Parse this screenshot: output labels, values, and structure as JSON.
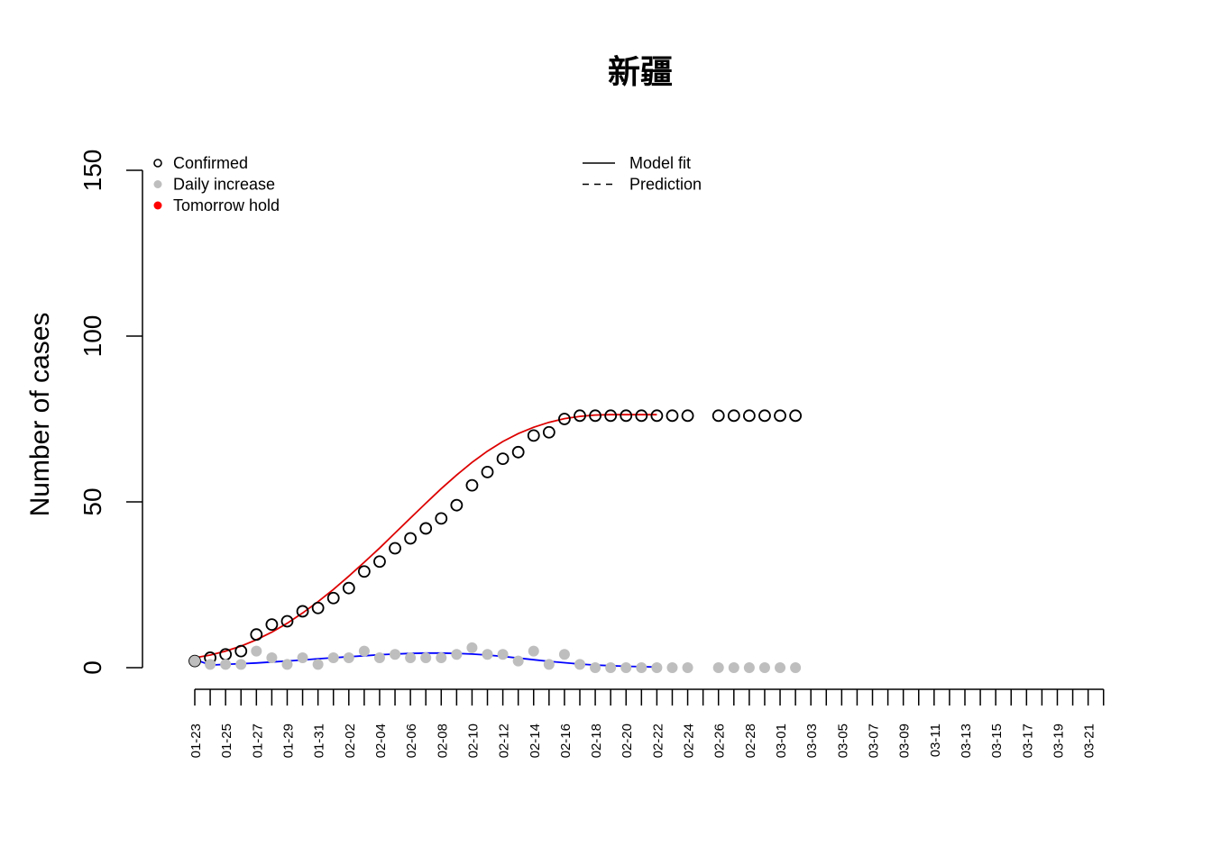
{
  "chart_data": {
    "type": "scatter",
    "title": "新疆",
    "ylabel": "Number of cases",
    "xlabel": "",
    "ylim": [
      0,
      150
    ],
    "yticks": [
      0,
      50,
      100,
      150
    ],
    "x_dates": [
      "01-23",
      "01-24",
      "01-25",
      "01-26",
      "01-27",
      "01-28",
      "01-29",
      "01-30",
      "01-31",
      "02-01",
      "02-02",
      "02-03",
      "02-04",
      "02-05",
      "02-06",
      "02-07",
      "02-08",
      "02-09",
      "02-10",
      "02-11",
      "02-12",
      "02-13",
      "02-14",
      "02-15",
      "02-16",
      "02-17",
      "02-18",
      "02-19",
      "02-20",
      "02-21",
      "02-22",
      "02-23",
      "02-24",
      "02-25",
      "02-26",
      "02-27",
      "02-28",
      "02-29",
      "03-01",
      "03-02",
      "03-03",
      "03-04",
      "03-05",
      "03-06",
      "03-07",
      "03-08",
      "03-09",
      "03-10",
      "03-11",
      "03-12",
      "03-13",
      "03-14",
      "03-15",
      "03-16",
      "03-17",
      "03-18",
      "03-19",
      "03-20",
      "03-21",
      "03-22"
    ],
    "x_tick_labels": [
      "01-23",
      "01-25",
      "01-27",
      "01-29",
      "01-31",
      "02-02",
      "02-04",
      "02-06",
      "02-08",
      "02-10",
      "02-12",
      "02-14",
      "02-16",
      "02-18",
      "02-20",
      "02-22",
      "02-24",
      "02-26",
      "02-28",
      "03-01",
      "03-03",
      "03-05",
      "03-07",
      "03-09",
      "03-11",
      "03-13",
      "03-15",
      "03-17",
      "03-19",
      "03-21"
    ],
    "series": [
      {
        "name": "Confirmed",
        "style": "open-circle",
        "color": "#000000",
        "x": [
          "01-23",
          "01-24",
          "01-25",
          "01-26",
          "01-27",
          "01-28",
          "01-29",
          "01-30",
          "01-31",
          "02-01",
          "02-02",
          "02-03",
          "02-04",
          "02-05",
          "02-06",
          "02-07",
          "02-08",
          "02-09",
          "02-10",
          "02-11",
          "02-12",
          "02-13",
          "02-14",
          "02-15",
          "02-16",
          "02-17",
          "02-18",
          "02-19",
          "02-20",
          "02-21",
          "02-22",
          "02-23",
          "02-24",
          "02-26",
          "02-27",
          "02-28",
          "02-29",
          "03-01",
          "03-02"
        ],
        "values": [
          2,
          3,
          4,
          5,
          10,
          13,
          14,
          17,
          18,
          21,
          24,
          29,
          32,
          36,
          39,
          42,
          45,
          49,
          55,
          59,
          63,
          65,
          70,
          71,
          75,
          76,
          76,
          76,
          76,
          76,
          76,
          76,
          76,
          76,
          76,
          76,
          76,
          76,
          76
        ]
      },
      {
        "name": "Daily increase",
        "style": "filled-circle",
        "color": "#bebebe",
        "x": [
          "01-23",
          "01-24",
          "01-25",
          "01-26",
          "01-27",
          "01-28",
          "01-29",
          "01-30",
          "01-31",
          "02-01",
          "02-02",
          "02-03",
          "02-04",
          "02-05",
          "02-06",
          "02-07",
          "02-08",
          "02-09",
          "02-10",
          "02-11",
          "02-12",
          "02-13",
          "02-14",
          "02-15",
          "02-16",
          "02-17",
          "02-18",
          "02-19",
          "02-20",
          "02-21",
          "02-22",
          "02-23",
          "02-24",
          "02-26",
          "02-27",
          "02-28",
          "02-29",
          "03-01",
          "03-02"
        ],
        "values": [
          2,
          1,
          1,
          1,
          5,
          3,
          1,
          3,
          1,
          3,
          3,
          5,
          3,
          4,
          3,
          3,
          3,
          4,
          6,
          4,
          4,
          2,
          5,
          1,
          4,
          1,
          0,
          0,
          0,
          0,
          0,
          0,
          0,
          0,
          0,
          0,
          0,
          0,
          0
        ]
      },
      {
        "name": "Tomorrow hold",
        "style": "filled-circle",
        "color": "#ff0000",
        "x": [],
        "values": []
      },
      {
        "name": "Model fit",
        "style": "line",
        "color": "#dd0000",
        "x": [
          "01-23",
          "01-24",
          "01-25",
          "01-26",
          "01-27",
          "01-28",
          "01-29",
          "01-30",
          "01-31",
          "02-01",
          "02-02",
          "02-03",
          "02-04",
          "02-05",
          "02-06",
          "02-07",
          "02-08",
          "02-09",
          "02-10",
          "02-11",
          "02-12",
          "02-13",
          "02-14",
          "02-15",
          "02-16",
          "02-17",
          "02-18",
          "02-19",
          "02-20",
          "02-21",
          "02-22"
        ],
        "values": [
          3,
          3.8,
          5,
          6.5,
          8.4,
          10.7,
          13.4,
          16.5,
          19.9,
          23.6,
          27.6,
          31.8,
          36.1,
          40.6,
          45.1,
          49.6,
          54,
          58.1,
          61.9,
          65.3,
          68.2,
          70.6,
          72.5,
          74,
          75.1,
          75.8,
          76.2,
          76.3,
          76.3,
          76.3,
          76.3
        ]
      },
      {
        "name": "Daily model fit",
        "style": "line",
        "color": "#0000ff",
        "x": [
          "01-23",
          "01-24",
          "01-25",
          "01-26",
          "01-27",
          "01-28",
          "01-29",
          "01-30",
          "01-31",
          "02-01",
          "02-02",
          "02-03",
          "02-04",
          "02-05",
          "02-06",
          "02-07",
          "02-08",
          "02-09",
          "02-10",
          "02-11",
          "02-12",
          "02-13",
          "02-14",
          "02-15",
          "02-16",
          "02-17",
          "02-18",
          "02-19",
          "02-20",
          "02-21",
          "02-22"
        ],
        "values": [
          2.5,
          0.8,
          1.0,
          1.2,
          1.4,
          1.7,
          2.0,
          2.3,
          2.7,
          3.0,
          3.3,
          3.6,
          3.9,
          4.1,
          4.3,
          4.4,
          4.4,
          4.3,
          4.1,
          3.8,
          3.4,
          2.9,
          2.4,
          1.9,
          1.5,
          1.1,
          0.8,
          0.6,
          0.4,
          0.3,
          0.2
        ]
      },
      {
        "name": "Prediction",
        "style": "dashed-line",
        "color": "#000000",
        "x": [],
        "values": []
      }
    ],
    "legend_left": {
      "placement": "top-left",
      "entries": [
        {
          "label": "Confirmed",
          "symbol": "open-circle",
          "color": "#000000"
        },
        {
          "label": "Daily increase",
          "symbol": "filled-circle",
          "color": "#bebebe"
        },
        {
          "label": "Tomorrow hold",
          "symbol": "filled-circle",
          "color": "#ff0000"
        }
      ]
    },
    "legend_right": {
      "placement": "top-center",
      "entries": [
        {
          "label": "Model fit",
          "symbol": "line",
          "color": "#000000"
        },
        {
          "label": "Prediction",
          "symbol": "dashed-line",
          "color": "#000000"
        }
      ]
    }
  }
}
